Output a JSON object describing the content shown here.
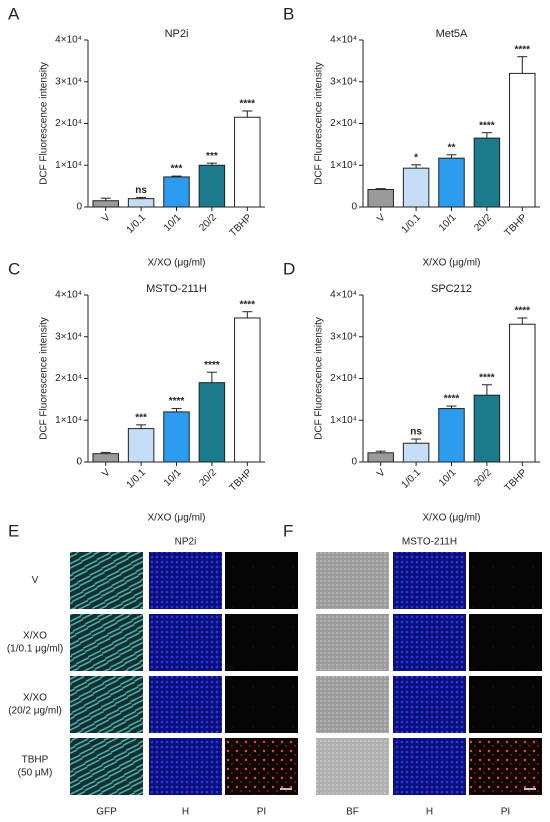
{
  "chart_data": [
    {
      "type": "bar",
      "panel": "A",
      "title": "NP2i",
      "ylabel": "DCF Fluorescence intensity",
      "xlabel": "X/XO (μg/ml)",
      "categories": [
        "V",
        "1/0.1",
        "10/1",
        "20/2",
        "TBHP"
      ],
      "values": [
        1500,
        2000,
        7200,
        10000,
        21500
      ],
      "errors": [
        600,
        300,
        200,
        500,
        1500
      ],
      "annotations": [
        null,
        "ns",
        "***",
        "***",
        "****"
      ],
      "colors": [
        "#9a9a9a",
        "#c5def5",
        "#2b9cf0",
        "#1b7b8c",
        "#ffffff"
      ],
      "ylim": [
        0,
        40000
      ],
      "yticks": [
        0,
        {
          "value": 10000,
          "label": "1×10⁴"
        },
        {
          "value": 20000,
          "label": "2×10⁴"
        },
        {
          "value": 30000,
          "label": "3×10⁴"
        },
        {
          "value": 40000,
          "label": "4×10⁴"
        }
      ]
    },
    {
      "type": "bar",
      "panel": "B",
      "title": "Met5A",
      "ylabel": "DCF Fluorescence intensity",
      "xlabel": "X/XO (μg/ml)",
      "categories": [
        "V",
        "1/0.1",
        "10/1",
        "20/2",
        "TBHP"
      ],
      "values": [
        4200,
        9300,
        11700,
        16500,
        32000
      ],
      "errors": [
        200,
        800,
        800,
        1300,
        4000
      ],
      "annotations": [
        null,
        "*",
        "**",
        "****",
        "****"
      ],
      "colors": [
        "#9a9a9a",
        "#c5def5",
        "#2b9cf0",
        "#1b7b8c",
        "#ffffff"
      ],
      "ylim": [
        0,
        40000
      ],
      "yticks": [
        0,
        {
          "value": 10000,
          "label": "1×10⁴"
        },
        {
          "value": 20000,
          "label": "2×10⁴"
        },
        {
          "value": 30000,
          "label": "3×10⁴"
        },
        {
          "value": 40000,
          "label": "4×10⁴"
        }
      ]
    },
    {
      "type": "bar",
      "panel": "C",
      "title": "MSTO-211H",
      "ylabel": "DCF Fluorescence intensity",
      "xlabel": "X/XO (μg/ml)",
      "categories": [
        "V",
        "1/0.1",
        "10/1",
        "20/2",
        "TBHP"
      ],
      "values": [
        2000,
        8000,
        12000,
        19000,
        34500
      ],
      "errors": [
        300,
        900,
        800,
        2500,
        1500
      ],
      "annotations": [
        null,
        "***",
        "****",
        "****",
        "****"
      ],
      "colors": [
        "#9a9a9a",
        "#c5def5",
        "#2b9cf0",
        "#1b7b8c",
        "#ffffff"
      ],
      "ylim": [
        0,
        40000
      ],
      "yticks": [
        0,
        {
          "value": 10000,
          "label": "1×10⁴"
        },
        {
          "value": 20000,
          "label": "2×10⁴"
        },
        {
          "value": 30000,
          "label": "3×10⁴"
        },
        {
          "value": 40000,
          "label": "4×10⁴"
        }
      ]
    },
    {
      "type": "bar",
      "panel": "D",
      "title": "SPC212",
      "ylabel": "DCF Fluorescence intensity",
      "xlabel": "X/XO (μg/ml)",
      "categories": [
        "V",
        "1/0.1",
        "10/1",
        "20/2",
        "TBHP"
      ],
      "values": [
        2200,
        4500,
        12800,
        16000,
        33000
      ],
      "errors": [
        400,
        1000,
        600,
        2500,
        1500
      ],
      "annotations": [
        null,
        "ns",
        "****",
        "****",
        "****"
      ],
      "colors": [
        "#9a9a9a",
        "#c5def5",
        "#2b9cf0",
        "#1b7b8c",
        "#ffffff"
      ],
      "ylim": [
        0,
        40000
      ],
      "yticks": [
        0,
        {
          "value": 10000,
          "label": "1×10⁴"
        },
        {
          "value": 20000,
          "label": "2×10⁴"
        },
        {
          "value": 30000,
          "label": "3×10⁴"
        },
        {
          "value": 40000,
          "label": "4×10⁴"
        }
      ]
    }
  ],
  "image_panels": [
    {
      "panel": "E",
      "title": "NP2i",
      "rows": [
        [
          "V"
        ],
        [
          "X/XO",
          "(1/0.1 μg/ml)"
        ],
        [
          "X/XO",
          "(20/2 μg/ml)"
        ],
        [
          "TBHP",
          "(50 μM)"
        ]
      ],
      "columns": [
        "GFP",
        "H",
        "PI"
      ]
    },
    {
      "panel": "F",
      "title": "MSTO-211H",
      "columns": [
        "BF",
        "H",
        "PI"
      ]
    }
  ]
}
